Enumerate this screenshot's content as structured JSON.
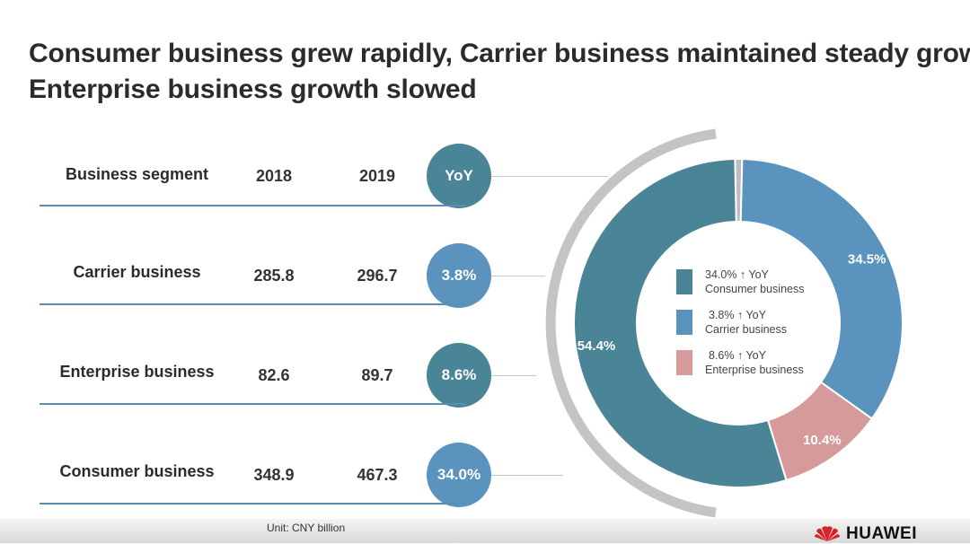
{
  "title": {
    "line1": "Consumer business grew rapidly, Carrier business maintained steady growth,",
    "line2": "Enterprise business growth slowed"
  },
  "table": {
    "headers": {
      "segment": "Business segment",
      "y2018": "2018",
      "y2019": "2019",
      "yoy": "YoY"
    },
    "rows": [
      {
        "segment": "Carrier business",
        "y2018": "285.8",
        "y2019": "296.7",
        "yoy": "3.8%"
      },
      {
        "segment": "Enterprise business",
        "y2018": "82.6",
        "y2019": "89.7",
        "yoy": "8.6%"
      },
      {
        "segment": "Consumer business",
        "y2018": "348.9",
        "y2019": "467.3",
        "yoy": "34.0%"
      }
    ],
    "unit": "Unit: CNY billion"
  },
  "colors": {
    "consumer": "#4a8597",
    "carrier": "#5b93bf",
    "enterprise": "#d69a9a",
    "other": "#bdbdbd",
    "header_pill": "#4a8597",
    "row_pill": "#5b93bf"
  },
  "chart_data": {
    "type": "pie",
    "variant": "donut",
    "categories": [
      "Other",
      "Carrier business",
      "Enterprise business",
      "Consumer business"
    ],
    "values": [
      0.7,
      34.5,
      10.4,
      54.4
    ],
    "labels": [
      "",
      "34.5%",
      "10.4%",
      "54.4%"
    ],
    "legend": [
      {
        "line1": "34.0% ↑ YoY",
        "line2": "Consumer business",
        "series": "Consumer business"
      },
      {
        "line1": "3.8% ↑ YoY",
        "line2": "Carrier business",
        "series": "Carrier business"
      },
      {
        "line1": "8.6% ↑ YoY",
        "line2": "Enterprise business",
        "series": "Enterprise business"
      }
    ],
    "legend_position": "center"
  },
  "brand": {
    "name": "HUAWEI"
  }
}
